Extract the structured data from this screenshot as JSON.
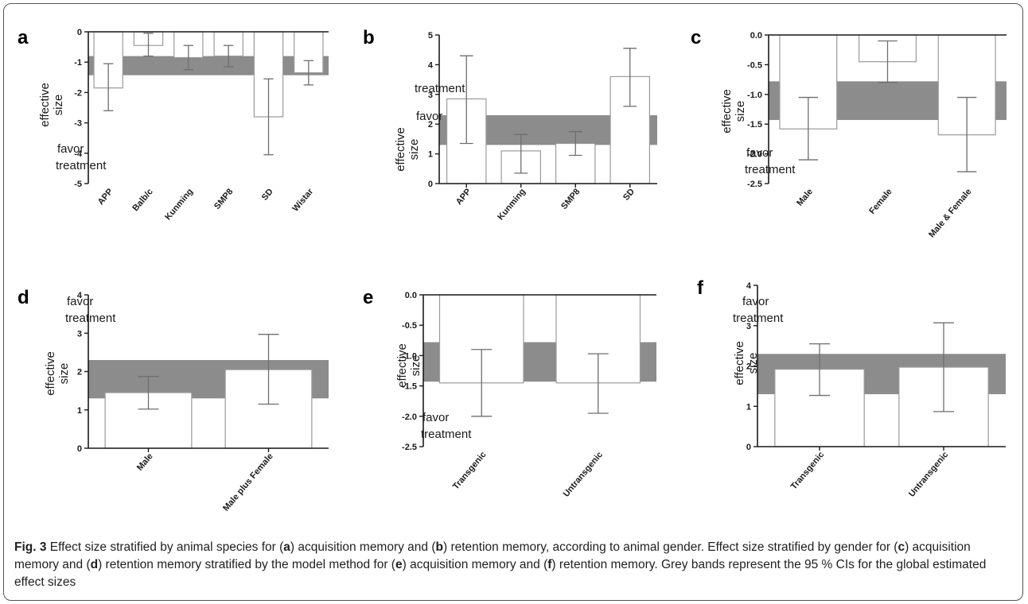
{
  "colors": {
    "band": "#8c8c8c",
    "bar_fill": "#ffffff",
    "bar_stroke": "#9a9a9a",
    "axis": "#1a1a1a",
    "error": "#6e6e6e"
  },
  "chart_data": [
    {
      "panel": "a",
      "type": "bar",
      "categories": [
        "APP",
        "Balb/c",
        "Kunming",
        "SMP8",
        "SD",
        "Wistar"
      ],
      "values": [
        -1.85,
        -0.45,
        -0.85,
        -0.8,
        -2.8,
        -1.35
      ],
      "err_low": [
        -2.6,
        -0.8,
        -1.25,
        -1.15,
        -4.05,
        -1.75
      ],
      "err_high": [
        -1.05,
        -0.05,
        -0.45,
        -0.45,
        -1.55,
        -0.95
      ],
      "band": [
        -1.43,
        -0.8
      ],
      "ylim": [
        -5,
        0
      ],
      "yticks": [
        0,
        -1,
        -2,
        -3,
        -4,
        -5
      ],
      "ylabel": "effective size",
      "annotation": "favor treatment"
    },
    {
      "panel": "b",
      "type": "bar",
      "categories": [
        "APP",
        "Kunming",
        "SMP8",
        "SD"
      ],
      "values": [
        2.85,
        1.1,
        1.35,
        3.6
      ],
      "err_low": [
        1.35,
        0.35,
        0.95,
        2.6
      ],
      "err_high": [
        4.3,
        1.65,
        1.75,
        4.55
      ],
      "band": [
        1.3,
        2.3
      ],
      "ylim": [
        0,
        5
      ],
      "yticks": [
        0,
        1,
        2,
        3,
        4,
        5
      ],
      "ylabel": "effective size",
      "annotation": "favor treatment"
    },
    {
      "panel": "c",
      "type": "bar",
      "categories": [
        "Male",
        "Female",
        "Male & Female"
      ],
      "values": [
        -1.58,
        -0.45,
        -1.68
      ],
      "err_low": [
        -2.1,
        -0.8,
        -2.3
      ],
      "err_high": [
        -1.05,
        -0.1,
        -1.05
      ],
      "band": [
        -1.43,
        -0.78
      ],
      "ylim": [
        -2.5,
        0
      ],
      "yticks": [
        0.0,
        -0.5,
        -1.0,
        -1.5,
        -2.0,
        -2.5
      ],
      "ylabel": "effective size",
      "annotation": "favor treatment"
    },
    {
      "panel": "d",
      "type": "bar",
      "categories": [
        "Male",
        "Male plus Female"
      ],
      "values": [
        1.45,
        2.05
      ],
      "err_low": [
        1.02,
        1.15
      ],
      "err_high": [
        1.87,
        2.97
      ],
      "band": [
        1.3,
        2.3
      ],
      "ylim": [
        0,
        4
      ],
      "yticks": [
        0,
        1,
        2,
        3,
        4
      ],
      "ylabel": "effective size",
      "annotation": "favor treatment"
    },
    {
      "panel": "e",
      "type": "bar",
      "categories": [
        "Transgenic",
        "Untransgenic"
      ],
      "values": [
        -1.45,
        -1.45
      ],
      "err_low": [
        -2.0,
        -1.95
      ],
      "err_high": [
        -0.9,
        -0.97
      ],
      "band": [
        -1.43,
        -0.78
      ],
      "ylim": [
        -2.5,
        0
      ],
      "yticks": [
        0.0,
        -0.5,
        -1.0,
        -1.5,
        -2.0,
        -2.5
      ],
      "ylabel": "effective size",
      "annotation": "favor treatment"
    },
    {
      "panel": "f",
      "type": "bar",
      "categories": [
        "Transgenic",
        "Untransgenic"
      ],
      "values": [
        1.92,
        1.97
      ],
      "err_low": [
        1.27,
        0.87
      ],
      "err_high": [
        2.55,
        3.07
      ],
      "band": [
        1.3,
        2.3
      ],
      "ylim": [
        0,
        4
      ],
      "yticks": [
        0,
        1,
        2,
        3,
        4
      ],
      "ylabel": "effective size",
      "annotation": "favor treatment"
    }
  ],
  "caption": {
    "fig_label": "Fig. 3",
    "parts": [
      {
        "t": " Effect size stratified by animal species for ("
      },
      {
        "b": "a"
      },
      {
        "t": ") acquisition memory and ("
      },
      {
        "b": "b"
      },
      {
        "t": ") retention memory, according to animal gender. Effect size stratified by gender for ("
      },
      {
        "b": "c"
      },
      {
        "t": ") acquisition memory and ("
      },
      {
        "b": "d"
      },
      {
        "t": ") retention memory stratified by the model method for ("
      },
      {
        "b": "e"
      },
      {
        "t": ") acquisition memory and ("
      },
      {
        "b": "f"
      },
      {
        "t": ") retention memory. Grey bands represent the 95 % CIs for the global estimated effect sizes"
      }
    ]
  }
}
